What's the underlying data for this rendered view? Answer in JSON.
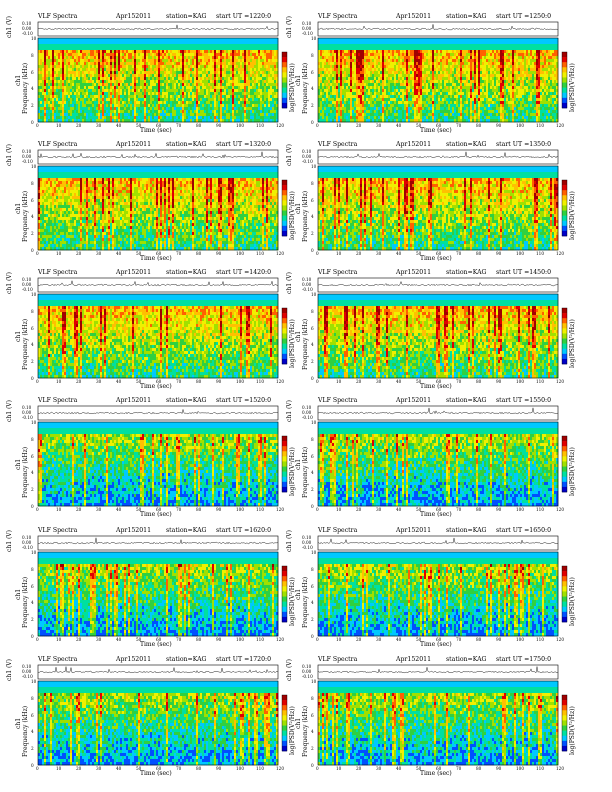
{
  "common": {
    "title": "VLF Spectra",
    "date": "Apr152011",
    "station": "station=KAG",
    "ut_prefix": "start  UT =",
    "ch_label": "ch1 (V)",
    "freq_label": "Frequency  (kHz)",
    "freq_label_short": "ch1",
    "time_label": "Time  (sec)",
    "colorbar_label": "log(PSD(V²/Hz))",
    "x_ticks": [
      "0",
      "10",
      "20",
      "30",
      "40",
      "50",
      "60",
      "70",
      "80",
      "90",
      "100",
      "110",
      "120"
    ],
    "y_ticks": [
      "0",
      "2",
      "4",
      "6",
      "8",
      "10"
    ],
    "wave_ticks": [
      "0.10",
      "0.00",
      "-0.10"
    ],
    "colorbar_ticks": [
      "",
      "",
      ""
    ]
  },
  "chart_data": [
    {
      "type": "heatmap",
      "start_ut": "1220:0",
      "xlim": [
        0,
        120
      ],
      "ylim": [
        0,
        10
      ],
      "xlabel": "Time  (sec)",
      "ylabel": "Frequency  (kHz)"
    },
    {
      "type": "heatmap",
      "start_ut": "1250:0",
      "xlim": [
        0,
        120
      ],
      "ylim": [
        0,
        10
      ],
      "xlabel": "Time  (sec)",
      "ylabel": "Frequency  (kHz)"
    },
    {
      "type": "heatmap",
      "start_ut": "1320:0",
      "xlim": [
        0,
        120
      ],
      "ylim": [
        0,
        10
      ],
      "xlabel": "Time  (sec)",
      "ylabel": "Frequency  (kHz)"
    },
    {
      "type": "heatmap",
      "start_ut": "1350:0",
      "xlim": [
        0,
        120
      ],
      "ylim": [
        0,
        10
      ],
      "xlabel": "Time  (sec)",
      "ylabel": "Frequency  (kHz)"
    },
    {
      "type": "heatmap",
      "start_ut": "1420:0",
      "xlim": [
        0,
        120
      ],
      "ylim": [
        0,
        10
      ],
      "xlabel": "Time  (sec)",
      "ylabel": "Frequency  (kHz)"
    },
    {
      "type": "heatmap",
      "start_ut": "1450:0",
      "xlim": [
        0,
        120
      ],
      "ylim": [
        0,
        10
      ],
      "xlabel": "Time  (sec)",
      "ylabel": "Frequency  (kHz)"
    },
    {
      "type": "heatmap",
      "start_ut": "1520:0",
      "xlim": [
        0,
        120
      ],
      "ylim": [
        0,
        10
      ],
      "xlabel": "Time  (sec)",
      "ylabel": "Frequency  (kHz)"
    },
    {
      "type": "heatmap",
      "start_ut": "1550:0",
      "xlim": [
        0,
        120
      ],
      "ylim": [
        0,
        10
      ],
      "xlabel": "Time  (sec)",
      "ylabel": "Frequency  (kHz)"
    },
    {
      "type": "heatmap",
      "start_ut": "1620:0",
      "xlim": [
        0,
        120
      ],
      "ylim": [
        0,
        10
      ],
      "xlabel": "Time  (sec)",
      "ylabel": "Frequency  (kHz)"
    },
    {
      "type": "heatmap",
      "start_ut": "1650:0",
      "xlim": [
        0,
        120
      ],
      "ylim": [
        0,
        10
      ],
      "xlabel": "Time  (sec)",
      "ylabel": "Frequency  (kHz)"
    },
    {
      "type": "heatmap",
      "start_ut": "1720:0",
      "xlim": [
        0,
        120
      ],
      "ylim": [
        0,
        10
      ],
      "xlabel": "Time  (sec)",
      "ylabel": "Frequency  (kHz)"
    },
    {
      "type": "heatmap",
      "start_ut": "1750:0",
      "xlim": [
        0,
        120
      ],
      "ylim": [
        0,
        10
      ],
      "xlabel": "Time  (sec)",
      "ylabel": "Frequency  (kHz)"
    }
  ],
  "colors": {
    "scale": [
      "#0000c8",
      "#0050ff",
      "#00c8ff",
      "#00e0a0",
      "#30d040",
      "#a0e000",
      "#f0f000",
      "#ffc000",
      "#ff6000",
      "#e00000",
      "#a00000"
    ]
  }
}
